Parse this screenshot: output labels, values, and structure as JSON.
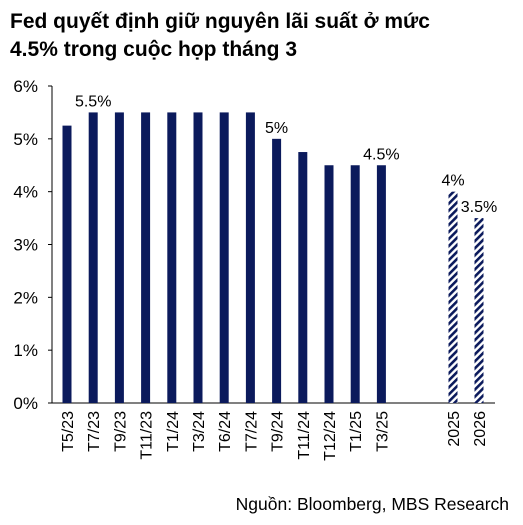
{
  "header": {
    "title_line1": "Fed quyết định giữ nguyên lãi suất ở mức",
    "title_line2": "4.5% trong cuộc họp tháng 3"
  },
  "footer": {
    "source": "Nguồn: Bloomberg, MBS Research"
  },
  "colors": {
    "bar": "#0b1a5c",
    "forecast_hatch": "#0b1a5c",
    "axis": "#000000"
  },
  "chart_data": {
    "type": "bar",
    "title": "Fed quyết định giữ nguyên lãi suất ở mức 4.5% trong cuộc họp tháng 3",
    "xlabel": "",
    "ylabel": "",
    "ylim": [
      0,
      6
    ],
    "yticks": [
      "0%",
      "1%",
      "2%",
      "3%",
      "4%",
      "5%",
      "6%"
    ],
    "grid": false,
    "legend": "none",
    "categories": [
      "T5/23",
      "T7/23",
      "T9/23",
      "T11/23",
      "T1/24",
      "T3/24",
      "T6/24",
      "T7/24",
      "T9/24",
      "T11/24",
      "T12/24",
      "T1/25",
      "T3/25",
      "2025",
      "2026"
    ],
    "values": [
      5.25,
      5.5,
      5.5,
      5.5,
      5.5,
      5.5,
      5.5,
      5.5,
      5.0,
      4.75,
      4.5,
      4.5,
      4.5,
      4.0,
      3.5
    ],
    "forecast": [
      false,
      false,
      false,
      false,
      false,
      false,
      false,
      false,
      false,
      false,
      false,
      false,
      false,
      true,
      true
    ],
    "data_labels": [
      {
        "index": 1,
        "text": "5.5%"
      },
      {
        "index": 8,
        "text": "5%"
      },
      {
        "index": 12,
        "text": "4.5%"
      },
      {
        "index": 13,
        "text": "4%"
      },
      {
        "index": 14,
        "text": "3.5%"
      }
    ]
  }
}
